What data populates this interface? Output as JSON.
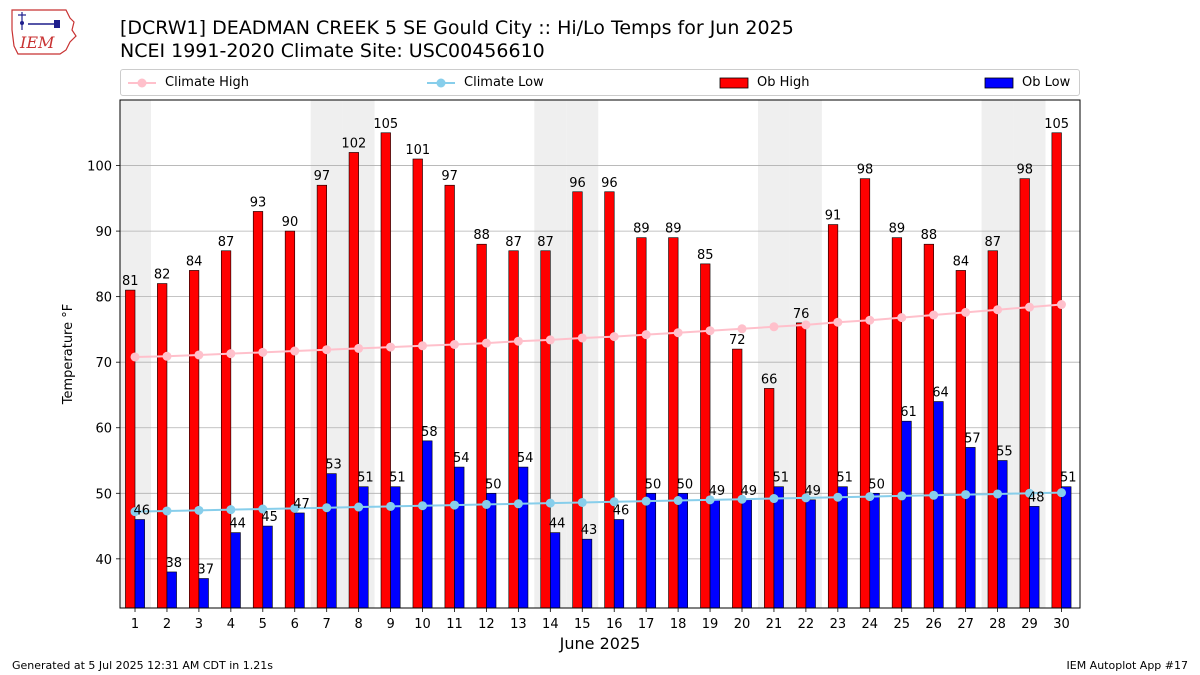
{
  "title": {
    "line1": "[DCRW1] DEADMAN CREEK 5 SE Gould City :: Hi/Lo Temps for Jun 2025",
    "line2": "NCEI 1991-2020 Climate Site: USC00456610"
  },
  "logo": {
    "text": "IEM"
  },
  "footer": {
    "left": "Generated at 5 Jul 2025 12:31 AM CDT in 1.21s",
    "right": "IEM Autoplot App #17"
  },
  "legend": {
    "climate_high": "Climate High",
    "climate_low": "Climate Low",
    "ob_high": "Ob High",
    "ob_low": "Ob Low",
    "placement": "top, outside plot"
  },
  "colors": {
    "ob_high": "#ff0000",
    "ob_low": "#0000ff",
    "climate_high": "#ffc0cb",
    "climate_low": "#87ceeb",
    "weekend_shade": "#efefef",
    "grid": "#b0b0b0"
  },
  "chart_data": {
    "type": "bar",
    "xlabel": "June 2025",
    "ylabel": "Temperature °F",
    "ylim": [
      32.5,
      110
    ],
    "yticks": [
      40,
      50,
      60,
      70,
      80,
      90,
      100
    ],
    "grid": "horizontal",
    "categories": [
      "1",
      "2",
      "3",
      "4",
      "5",
      "6",
      "7",
      "8",
      "9",
      "10",
      "11",
      "12",
      "13",
      "14",
      "15",
      "16",
      "17",
      "18",
      "19",
      "20",
      "21",
      "22",
      "23",
      "24",
      "25",
      "26",
      "27",
      "28",
      "29",
      "30"
    ],
    "shaded_days": [
      1,
      7,
      8,
      14,
      15,
      21,
      22,
      28,
      29
    ],
    "series": [
      {
        "name": "Ob High",
        "kind": "bar",
        "values": [
          81,
          82,
          84,
          87,
          93,
          90,
          97,
          102,
          105,
          101,
          97,
          88,
          87,
          87,
          96,
          96,
          89,
          89,
          85,
          72,
          66,
          76,
          91,
          98,
          89,
          88,
          84,
          87,
          98,
          105
        ]
      },
      {
        "name": "Ob Low",
        "kind": "bar",
        "values": [
          46,
          38,
          37,
          44,
          45,
          47,
          53,
          51,
          51,
          58,
          54,
          50,
          54,
          44,
          43,
          46,
          50,
          50,
          49,
          49,
          51,
          49,
          51,
          50,
          61,
          64,
          57,
          55,
          48,
          51
        ]
      },
      {
        "name": "Climate High",
        "kind": "line",
        "values": [
          70.8,
          70.9,
          71.1,
          71.3,
          71.5,
          71.7,
          71.9,
          72.1,
          72.3,
          72.5,
          72.7,
          72.9,
          73.2,
          73.4,
          73.7,
          73.9,
          74.2,
          74.5,
          74.8,
          75.1,
          75.4,
          75.7,
          76.1,
          76.4,
          76.8,
          77.2,
          77.6,
          78.0,
          78.4,
          78.8
        ]
      },
      {
        "name": "Climate Low",
        "kind": "line",
        "values": [
          47.2,
          47.3,
          47.4,
          47.5,
          47.6,
          47.7,
          47.8,
          47.9,
          48.0,
          48.1,
          48.2,
          48.3,
          48.4,
          48.5,
          48.6,
          48.7,
          48.8,
          48.9,
          49.0,
          49.1,
          49.2,
          49.3,
          49.4,
          49.5,
          49.6,
          49.7,
          49.8,
          49.9,
          50.0,
          50.1
        ]
      }
    ]
  }
}
